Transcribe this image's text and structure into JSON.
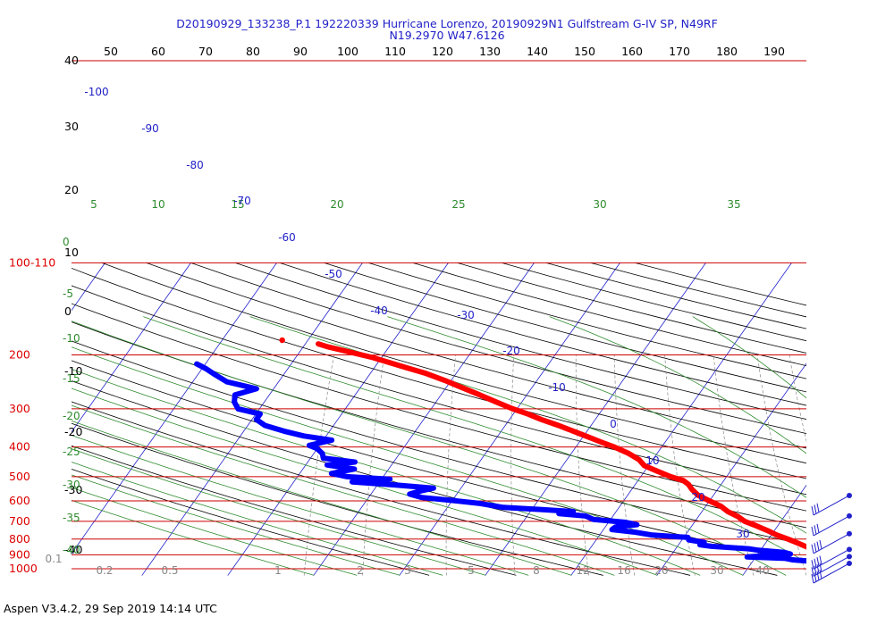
{
  "title_line1": "D20190929_133238_P.1 192220339 Hurricane Lorenzo, 20190929N1 Gulfstream G-IV SP, N49RF",
  "title_line2": "N19.2970 W47.6126",
  "footer": "Aspen V3.4.2, 29 Sep 2019  14:14 UTC",
  "colors": {
    "temperature": "#ff0000",
    "dewpoint": "#0000ff",
    "isobar": "#cc0000",
    "isotherm": "#2222cc",
    "dry_adiabat": "#000000",
    "moist_adiabat": "#2e8b2e",
    "mixing_ratio": "#8a8a8a",
    "text_blue": "#1f1fc8",
    "text_green": "#2e8b2e",
    "text_red": "#dd0000",
    "text_gray": "#888888"
  },
  "chart_data": {
    "type": "skew-T log-P diagram",
    "pressure_axis": {
      "levels": [
        1000,
        900,
        800,
        700,
        600,
        500,
        400,
        300,
        200,
        100
      ],
      "labels": [
        "1000",
        "900",
        "800",
        "700",
        "600",
        "500",
        "400",
        "300",
        "200",
        "100-110"
      ]
    },
    "top_scale": [
      "50",
      "60",
      "70",
      "80",
      "90",
      "100",
      "110",
      "120",
      "130",
      "140",
      "150",
      "160",
      "170",
      "180",
      "190"
    ],
    "left_scale": [
      "40",
      "30",
      "20",
      "10",
      "0",
      "-10",
      "-20",
      "-30",
      "-40"
    ],
    "moist_adiabat_labels_left": [
      "0",
      "-5",
      "-10",
      "-15",
      "-20",
      "-25",
      "-30",
      "-35",
      "-40"
    ],
    "moist_adiabat_labels_top": [
      "5",
      "10",
      "15",
      "20",
      "25",
      "30",
      "35"
    ],
    "isotherm_labels": [
      "-100",
      "-90",
      "-80",
      "-70",
      "-60",
      "-50",
      "-40",
      "-30",
      "-20",
      "-10",
      "0",
      "10",
      "20",
      "30"
    ],
    "mixing_ratio_labels": [
      "0.1",
      "0.2",
      "0.5",
      "1",
      "2",
      "3",
      "5",
      "8",
      "12",
      "16",
      "20",
      "30",
      "40"
    ],
    "temperature_profile": [
      {
        "p": 1000,
        "t": 26.0
      },
      {
        "p": 990,
        "t": 24.5
      },
      {
        "p": 980,
        "t": 23.3
      },
      {
        "p": 965,
        "t": 22.3
      },
      {
        "p": 950,
        "t": 21.0
      },
      {
        "p": 925,
        "t": 19.5
      },
      {
        "p": 900,
        "t": 17.6
      },
      {
        "p": 875,
        "t": 16.5
      },
      {
        "p": 850,
        "t": 15.2
      },
      {
        "p": 825,
        "t": 13.8
      },
      {
        "p": 800,
        "t": 12.3
      },
      {
        "p": 775,
        "t": 10.6
      },
      {
        "p": 750,
        "t": 9.2
      },
      {
        "p": 725,
        "t": 7.6
      },
      {
        "p": 700,
        "t": 5.8
      },
      {
        "p": 675,
        "t": 4.6
      },
      {
        "p": 650,
        "t": 3.0
      },
      {
        "p": 625,
        "t": 1.8
      },
      {
        "p": 600,
        "t": 0.0
      },
      {
        "p": 575,
        "t": -1.8
      },
      {
        "p": 550,
        "t": -3.0
      },
      {
        "p": 530,
        "t": -3.8
      },
      {
        "p": 515,
        "t": -4.7
      },
      {
        "p": 500,
        "t": -6.5
      },
      {
        "p": 480,
        "t": -8.5
      },
      {
        "p": 460,
        "t": -10.5
      },
      {
        "p": 440,
        "t": -11.6
      },
      {
        "p": 420,
        "t": -13.3
      },
      {
        "p": 400,
        "t": -15.5
      },
      {
        "p": 385,
        "t": -17.5
      },
      {
        "p": 370,
        "t": -19.5
      },
      {
        "p": 355,
        "t": -21.6
      },
      {
        "p": 340,
        "t": -23.8
      },
      {
        "p": 325,
        "t": -26.3
      },
      {
        "p": 312,
        "t": -28.3
      },
      {
        "p": 300,
        "t": -30.5
      },
      {
        "p": 285,
        "t": -33.0
      },
      {
        "p": 270,
        "t": -35.5
      },
      {
        "p": 255,
        "t": -38.3
      },
      {
        "p": 242,
        "t": -40.8
      },
      {
        "p": 230,
        "t": -43.5
      },
      {
        "p": 220,
        "t": -46.3
      },
      {
        "p": 212,
        "t": -48.6
      },
      {
        "p": 204,
        "t": -51.0
      },
      {
        "p": 198,
        "t": -53.3
      },
      {
        "p": 193,
        "t": -55.2
      },
      {
        "p": 188,
        "t": -57.2
      },
      {
        "p": 184,
        "t": -58.5
      }
    ],
    "temperature_isolated_point": {
      "p": 179,
      "t": -63.0
    },
    "dewpoint_profile": [
      {
        "p": 1000,
        "t": 19.5
      },
      {
        "p": 990,
        "t": 19.8
      },
      {
        "p": 975,
        "t": 18.9
      },
      {
        "p": 965,
        "t": 17.3
      },
      {
        "p": 950,
        "t": 18.0
      },
      {
        "p": 935,
        "t": 14.5
      },
      {
        "p": 925,
        "t": 13.6
      },
      {
        "p": 915,
        "t": 9.0
      },
      {
        "p": 905,
        "t": 11.2
      },
      {
        "p": 895,
        "t": 13.8
      },
      {
        "p": 885,
        "t": 13.0
      },
      {
        "p": 870,
        "t": 9.8
      },
      {
        "p": 860,
        "t": 8.5
      },
      {
        "p": 845,
        "t": 4.0
      },
      {
        "p": 835,
        "t": 2.5
      },
      {
        "p": 820,
        "t": 2.8
      },
      {
        "p": 805,
        "t": 0.8
      },
      {
        "p": 790,
        "t": 0.5
      },
      {
        "p": 775,
        "t": -4.0
      },
      {
        "p": 760,
        "t": -6.0
      },
      {
        "p": 745,
        "t": -9.0
      },
      {
        "p": 730,
        "t": -8.8
      },
      {
        "p": 718,
        "t": -6.5
      },
      {
        "p": 705,
        "t": -8.0
      },
      {
        "p": 690,
        "t": -12.0
      },
      {
        "p": 672,
        "t": -13.2
      },
      {
        "p": 660,
        "t": -16.5
      },
      {
        "p": 650,
        "t": -15.0
      },
      {
        "p": 640,
        "t": -19.0
      },
      {
        "p": 630,
        "t": -23.5
      },
      {
        "p": 612,
        "t": -26.5
      },
      {
        "p": 598,
        "t": -30.0
      },
      {
        "p": 585,
        "t": -33.8
      },
      {
        "p": 570,
        "t": -35.5
      },
      {
        "p": 558,
        "t": -34.6
      },
      {
        "p": 545,
        "t": -33.2
      },
      {
        "p": 532,
        "t": -38.0
      },
      {
        "p": 520,
        "t": -43.2
      },
      {
        "p": 510,
        "t": -39.0
      },
      {
        "p": 500,
        "t": -44.2
      },
      {
        "p": 488,
        "t": -46.3
      },
      {
        "p": 472,
        "t": -44.0
      },
      {
        "p": 458,
        "t": -47.5
      },
      {
        "p": 448,
        "t": -44.5
      },
      {
        "p": 435,
        "t": -48.5
      },
      {
        "p": 420,
        "t": -49.0
      },
      {
        "p": 405,
        "t": -50.0
      },
      {
        "p": 395,
        "t": -51.2
      },
      {
        "p": 380,
        "t": -49.0
      },
      {
        "p": 368,
        "t": -52.6
      },
      {
        "p": 355,
        "t": -55.3
      },
      {
        "p": 340,
        "t": -58.0
      },
      {
        "p": 325,
        "t": -59.5
      },
      {
        "p": 312,
        "t": -59.5
      },
      {
        "p": 300,
        "t": -62.5
      },
      {
        "p": 285,
        "t": -63.5
      },
      {
        "p": 270,
        "t": -64.0
      },
      {
        "p": 258,
        "t": -62.0
      },
      {
        "p": 245,
        "t": -66.0
      },
      {
        "p": 232,
        "t": -68.0
      },
      {
        "p": 222,
        "t": -69.5
      },
      {
        "p": 214,
        "t": -71.0
      }
    ],
    "wind_barbs": [
      {
        "p": 600,
        "direction_deg": 250,
        "speed_kt": 25
      },
      {
        "p": 700,
        "direction_deg": 260,
        "speed_kt": 30
      },
      {
        "p": 800,
        "direction_deg": 265,
        "speed_kt": 35
      },
      {
        "p": 900,
        "direction_deg": 270,
        "speed_kt": 40
      },
      {
        "p": 950,
        "direction_deg": 270,
        "speed_kt": 40
      },
      {
        "p": 1000,
        "direction_deg": 265,
        "speed_kt": 35
      }
    ]
  }
}
